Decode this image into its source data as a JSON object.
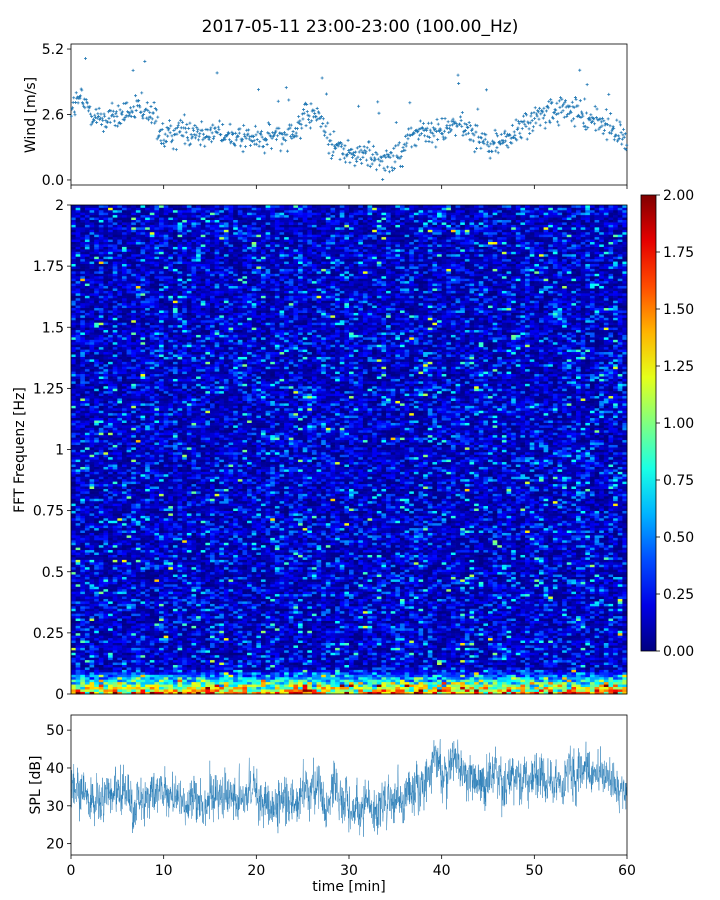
{
  "title": "2017-05-11 23:00-23:00 (100.00_Hz)",
  "chart_data": [
    {
      "type": "scatter",
      "name": "wind",
      "ylabel": "Wind [m/s]",
      "xlim": [
        0,
        60
      ],
      "ylim": [
        -0.2,
        5.4
      ],
      "yticks": [
        0.0,
        2.6,
        5.2
      ],
      "ytick_labels": [
        "0.0",
        "2.6",
        "5.2"
      ],
      "color": "#1f77b4",
      "marker": "+",
      "trend": {
        "x": [
          0,
          1,
          3,
          5,
          7,
          9,
          10,
          12,
          15,
          18,
          21,
          24,
          25.5,
          26.5,
          28,
          30,
          32,
          33.5,
          35,
          36.5,
          38,
          39,
          41,
          43,
          45,
          47,
          49,
          51,
          53,
          55,
          57,
          58.5,
          60
        ],
        "y": [
          2.9,
          3.2,
          2.4,
          2.5,
          2.8,
          2.5,
          1.6,
          2.0,
          1.9,
          1.7,
          1.6,
          2.0,
          2.5,
          2.6,
          1.5,
          1.0,
          1.0,
          0.8,
          0.9,
          1.6,
          2.0,
          1.8,
          2.2,
          2.0,
          1.3,
          1.6,
          2.2,
          2.6,
          2.8,
          2.6,
          2.3,
          2.0,
          1.6
        ]
      },
      "point_count": 900
    },
    {
      "type": "heatmap",
      "name": "spectrogram",
      "ylabel": "FFT Frequenz [Hz]",
      "xlim": [
        0,
        60
      ],
      "ylim": [
        0,
        2
      ],
      "yticks": [
        0,
        0.25,
        0.5,
        0.75,
        1,
        1.25,
        1.5,
        1.75,
        2
      ],
      "ytick_labels": [
        "0",
        "0.25",
        "0.5",
        "0.75",
        "1",
        "1.25",
        "1.5",
        "1.75",
        "2"
      ],
      "colormap": "jet",
      "clim": [
        0.0,
        2.0
      ],
      "time_bins": 120,
      "freq_bins": 200,
      "typical_level": 0.2,
      "low_frequency_level": 1.3
    },
    {
      "type": "line",
      "name": "spl",
      "ylabel": "SPL [dB]",
      "xlabel": "time [min]",
      "xlim": [
        0,
        60
      ],
      "ylim": [
        17,
        54
      ],
      "yticks": [
        20,
        30,
        40,
        50
      ],
      "ytick_labels": [
        "20",
        "30",
        "40",
        "50"
      ],
      "xticks": [
        0,
        10,
        20,
        30,
        40,
        50,
        60
      ],
      "xtick_labels": [
        "0",
        "10",
        "20",
        "30",
        "40",
        "50",
        "60"
      ],
      "color": "#1f77b4",
      "trend": {
        "x": [
          0,
          2,
          5,
          8,
          10,
          15,
          20,
          24,
          25,
          27,
          30,
          33,
          36,
          38,
          39,
          42,
          45,
          48,
          50,
          53,
          55,
          58,
          60
        ],
        "y": [
          34,
          31,
          33,
          32,
          33,
          33,
          32,
          31,
          36,
          33,
          30,
          29,
          33,
          37,
          41,
          38,
          37,
          35,
          38,
          36,
          40,
          36,
          33
        ]
      }
    }
  ],
  "colorbar": {
    "ticks": [
      0.0,
      0.25,
      0.5,
      0.75,
      1.0,
      1.25,
      1.5,
      1.75,
      2.0
    ],
    "tick_labels": [
      "0.00",
      "0.25",
      "0.50",
      "0.75",
      "1.00",
      "1.25",
      "1.50",
      "1.75",
      "2.00"
    ],
    "colormap": "jet"
  }
}
